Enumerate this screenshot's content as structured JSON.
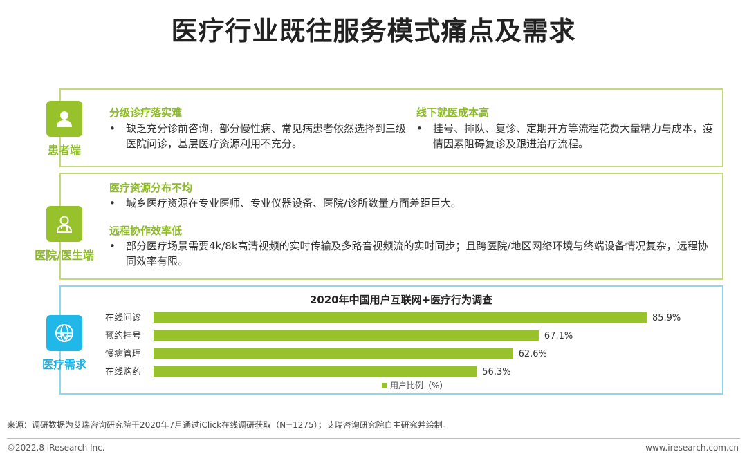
{
  "title": "医疗行业既往服务模式痛点及需求",
  "colors": {
    "green": "#97c22b",
    "blue": "#1fb8e8",
    "bar": "#97c22b"
  },
  "sections": [
    {
      "label": "患者端",
      "icon": "user-icon",
      "blocks": [
        {
          "heading": "分级诊疗落实难",
          "bullet": "•",
          "text": "缺乏充分诊前咨询，部分慢性病、常见病患者依然选择到三级医院问诊，基层医疗资源利用不充分。"
        },
        {
          "heading": "线下就医成本高",
          "bullet": "•",
          "text": "挂号、排队、复诊、定期开方等流程花费大量精力与成本，疫情因素阻碍复诊及跟进治疗流程。"
        }
      ]
    },
    {
      "label": "医院/医生端",
      "icon": "doctor-icon",
      "blocks": [
        {
          "heading": "医疗资源分布不均",
          "bullet": "•",
          "text": "城乡医疗资源在专业医师、专业仪器设备、医院/诊所数量方面差距巨大。"
        },
        {
          "heading": "远程协作效率低",
          "bullet": "•",
          "text": "部分医疗场景需要4k/8k高清视频的实时传输及多路音视频流的实时同步；且跨医院/地区网络环境与终端设备情况复杂，远程协同效率有限。"
        }
      ]
    },
    {
      "label": "医疗需求",
      "icon": "globe-network-icon"
    }
  ],
  "chart_data": {
    "type": "bar",
    "orientation": "horizontal",
    "title": "2020年中国用户互联网+医疗行为调查",
    "categories": [
      "在线问诊",
      "预约挂号",
      "慢病管理",
      "在线购药"
    ],
    "series": [
      {
        "name": "用户比例（%）",
        "values": [
          85.9,
          67.1,
          62.6,
          56.3
        ]
      }
    ],
    "data_labels": [
      "85.9%",
      "67.1%",
      "62.6%",
      "56.3%"
    ],
    "xlim": [
      0,
      100
    ],
    "grid": false,
    "legend_position": "bottom"
  },
  "footer": {
    "source": "来源：调研数据为艾瑞咨询研究院于2020年7月通过iClick在线调研获取（N=1275）；艾瑞咨询研究院自主研究并绘制。",
    "copyright": "©2022.8 iResearch Inc.",
    "website": "www.iresearch.com.cn"
  }
}
